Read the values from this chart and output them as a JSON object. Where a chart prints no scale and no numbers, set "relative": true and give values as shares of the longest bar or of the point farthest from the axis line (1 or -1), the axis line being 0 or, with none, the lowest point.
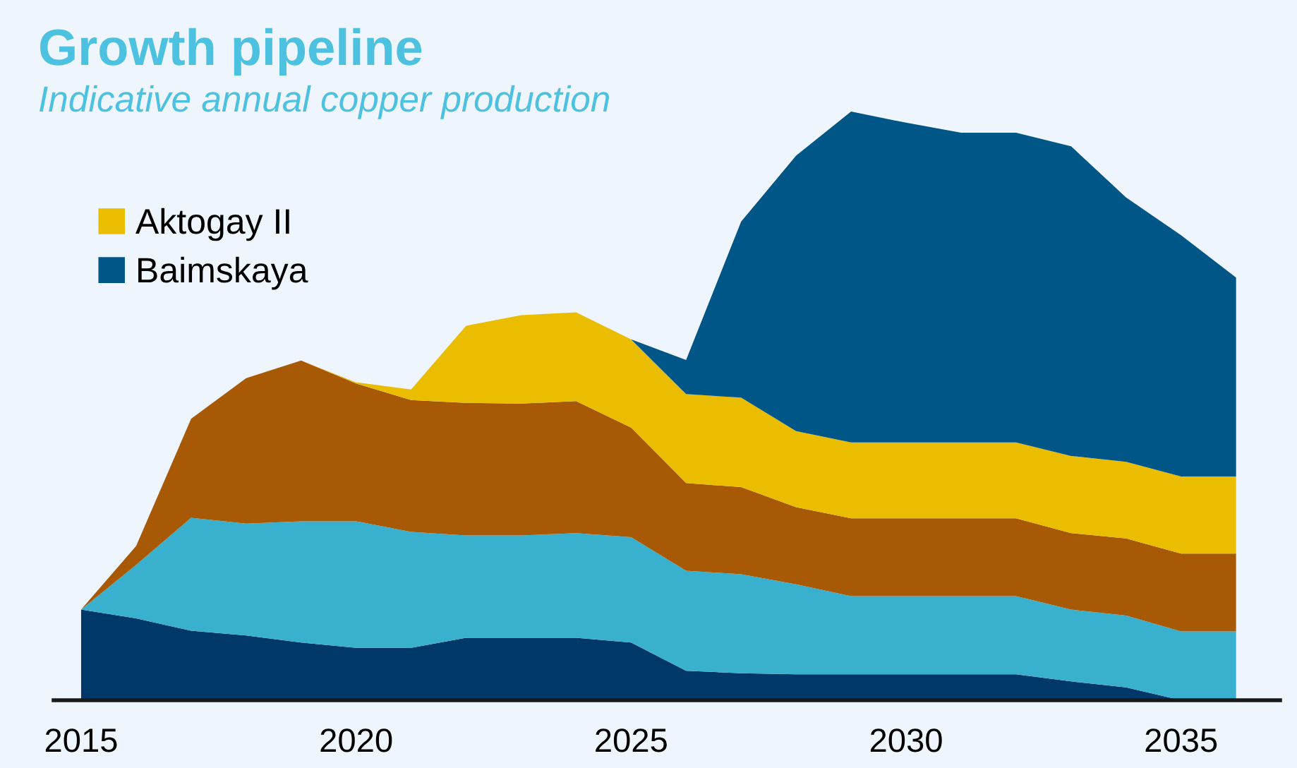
{
  "chart_data": {
    "type": "area",
    "title": "Growth pipeline",
    "subtitle": "Indicative annual copper production",
    "x": [
      2015,
      2016,
      2017,
      2018,
      2019,
      2020,
      2021,
      2022,
      2023,
      2024,
      2025,
      2026,
      2027,
      2028,
      2029,
      2030,
      2031,
      2032,
      2033,
      2034,
      2035,
      2036
    ],
    "xlim": [
      2014.5,
      2036.8
    ],
    "xticks": [
      2015,
      2020,
      2025,
      2030,
      2035
    ],
    "stacked": true,
    "relative": true,
    "legend": "top left",
    "grid": false,
    "series": [
      {
        "color": "#00386a",
        "values": [
          0.154,
          0.139,
          0.118,
          0.11,
          0.098,
          0.089,
          0.089,
          0.106,
          0.106,
          0.106,
          0.098,
          0.05,
          0.046,
          0.044,
          0.044,
          0.044,
          0.044,
          0.044,
          0.032,
          0.022,
          0,
          0
        ]
      },
      {
        "color": "#39b0ce",
        "values": [
          0,
          0.091,
          0.192,
          0.19,
          0.206,
          0.215,
          0.197,
          0.174,
          0.174,
          0.178,
          0.179,
          0.17,
          0.168,
          0.153,
          0.133,
          0.133,
          0.133,
          0.133,
          0.122,
          0.122,
          0.117,
          0.117
        ]
      },
      {
        "color": "#a85906",
        "values": [
          0,
          0.032,
          0.168,
          0.247,
          0.273,
          0.234,
          0.224,
          0.225,
          0.224,
          0.224,
          0.186,
          0.149,
          0.148,
          0.131,
          0.132,
          0.132,
          0.132,
          0.132,
          0.13,
          0.131,
          0.132,
          0.132
        ]
      },
      {
        "name": "Aktogay II",
        "color": "#eabd00",
        "values": [
          0,
          0,
          0,
          0,
          0,
          0.002,
          0.018,
          0.131,
          0.15,
          0.151,
          0.15,
          0.151,
          0.152,
          0.129,
          0.129,
          0.129,
          0.129,
          0.129,
          0.131,
          0.13,
          0.131,
          0.131
        ]
      },
      {
        "name": "Baimskaya",
        "color": "#005686",
        "values": [
          0,
          0,
          0,
          0,
          0,
          0,
          0,
          0,
          0,
          0,
          0,
          0.058,
          0.299,
          0.468,
          0.562,
          0.543,
          0.526,
          0.526,
          0.526,
          0.449,
          0.41,
          0.338
        ]
      }
    ]
  }
}
